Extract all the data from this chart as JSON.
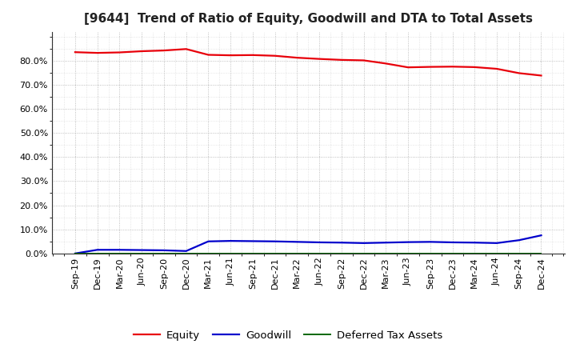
{
  "title": "[9644]  Trend of Ratio of Equity, Goodwill and DTA to Total Assets",
  "x_labels": [
    "Sep-19",
    "Dec-19",
    "Mar-20",
    "Jun-20",
    "Sep-20",
    "Dec-20",
    "Mar-21",
    "Jun-21",
    "Sep-21",
    "Dec-21",
    "Mar-22",
    "Jun-22",
    "Sep-22",
    "Dec-22",
    "Mar-23",
    "Jun-23",
    "Sep-23",
    "Dec-23",
    "Mar-24",
    "Jun-24",
    "Sep-24",
    "Dec-24"
  ],
  "equity": [
    83.5,
    83.2,
    83.4,
    83.9,
    84.2,
    84.8,
    82.4,
    82.2,
    82.3,
    82.0,
    81.2,
    80.7,
    80.3,
    80.1,
    78.8,
    77.2,
    77.4,
    77.5,
    77.3,
    76.6,
    74.8,
    73.8
  ],
  "goodwill": [
    0.0,
    1.5,
    1.5,
    1.4,
    1.3,
    1.0,
    5.0,
    5.2,
    5.1,
    5.0,
    4.8,
    4.6,
    4.5,
    4.3,
    4.5,
    4.7,
    4.8,
    4.6,
    4.5,
    4.3,
    5.5,
    7.5
  ],
  "dta": [
    0.0,
    0.0,
    0.0,
    0.0,
    0.0,
    0.0,
    0.0,
    0.0,
    0.0,
    0.0,
    0.0,
    0.0,
    0.0,
    0.0,
    0.0,
    0.0,
    0.0,
    0.0,
    0.0,
    0.0,
    0.0,
    0.0
  ],
  "equity_color": "#e8000a",
  "goodwill_color": "#0000cc",
  "dta_color": "#006600",
  "background_color": "#ffffff",
  "plot_bg_color": "#ffffff",
  "grid_color": "#999999",
  "ylim": [
    0.0,
    92.0
  ],
  "yticks": [
    0,
    10,
    20,
    30,
    40,
    50,
    60,
    70,
    80
  ],
  "legend_labels": [
    "Equity",
    "Goodwill",
    "Deferred Tax Assets"
  ],
  "title_fontsize": 11,
  "tick_fontsize": 8,
  "legend_fontsize": 9.5
}
